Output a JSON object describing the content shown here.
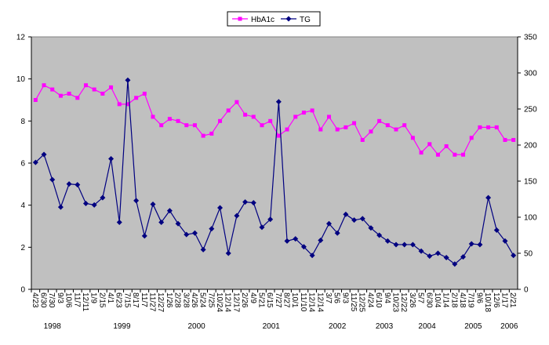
{
  "chart_data": {
    "type": "line",
    "categories": [
      "4/23",
      "6/30",
      "7/30",
      "9/3",
      "10/6",
      "11/7",
      "12/11",
      "1/9",
      "2/15",
      "4/1",
      "6/23",
      "7/15",
      "8/17",
      "11/7",
      "11/27",
      "12/27",
      "1/26",
      "2/28",
      "3/28",
      "4/26",
      "5/24",
      "7/25",
      "10/24",
      "12/14",
      "12/17",
      "2/26",
      "4/9",
      "5/21",
      "6/15",
      "7/27",
      "8/27",
      "10/1",
      "11/10",
      "12/14",
      "12/14",
      "3/7",
      "5/6",
      "9/3",
      "11/25",
      "12/25",
      "4/24",
      "6/10",
      "9/4",
      "10/23",
      "12/22",
      "3/26",
      "5/7",
      "6/30",
      "10/4",
      "1/14",
      "2/18",
      "4/18",
      "7/19",
      "9/6",
      "10/18",
      "12/6",
      "1/17",
      "2/21"
    ],
    "years": [
      "1998",
      "1999",
      "2000",
      "2001",
      "2002",
      "2003",
      "2004",
      "2005",
      "2006"
    ],
    "series": [
      {
        "name": "HbA1c",
        "color": "#ff00ff",
        "marker": "square",
        "values": [
          9.0,
          9.7,
          9.5,
          9.2,
          9.3,
          9.1,
          9.7,
          9.5,
          9.3,
          9.6,
          8.8,
          8.8,
          9.1,
          9.3,
          8.2,
          7.8,
          8.1,
          8.0,
          7.8,
          7.8,
          7.3,
          7.4,
          8.0,
          8.5,
          8.9,
          8.3,
          8.2,
          7.8,
          8.0,
          7.3,
          7.6,
          8.2,
          8.4,
          8.5,
          7.6,
          8.2,
          7.6,
          7.7,
          7.9,
          7.1,
          7.5,
          8.0,
          7.8,
          7.6,
          7.8,
          7.2,
          6.5,
          6.9,
          6.4,
          6.8,
          6.4,
          6.4,
          7.2,
          7.7,
          7.7,
          7.7,
          7.1,
          7.1
        ]
      },
      {
        "name": "TG",
        "color": "#000080",
        "marker": "diamond",
        "axis": "y2",
        "values": [
          176,
          187,
          152,
          114,
          146,
          145,
          119,
          117,
          127,
          181,
          93,
          290,
          123,
          74,
          118,
          93,
          109,
          91,
          76,
          78,
          55,
          84,
          113,
          50,
          102,
          121,
          120,
          86,
          97,
          260,
          67,
          70,
          59,
          47,
          68,
          91,
          78,
          104,
          96,
          98,
          85,
          75,
          67,
          62,
          62,
          62,
          53,
          46,
          50,
          44,
          35,
          45,
          63,
          62,
          127,
          82,
          67,
          47
        ]
      }
    ],
    "ylim": [
      0,
      12
    ],
    "yticks": [
      0,
      2,
      4,
      6,
      8,
      10,
      12
    ],
    "y2lim": [
      0,
      350
    ],
    "y2ticks": [
      0,
      50,
      100,
      150,
      200,
      250,
      300,
      350
    ],
    "plot_background": "#c0c0c0",
    "legend": "top"
  }
}
